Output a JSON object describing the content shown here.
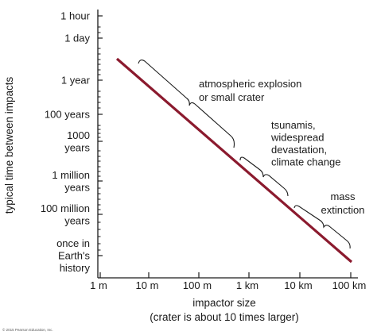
{
  "chart_data": {
    "type": "line",
    "xlabel": "impactor size",
    "xlabel_sub": "(crater is about 10 times larger)",
    "ylabel": "typical time between impacts",
    "x_scale": "log",
    "x_ticks": [
      "1 m",
      "10 m",
      "100 m",
      "1 km",
      "10 km",
      "100 km"
    ],
    "y_ticks": [
      [
        "1 hour"
      ],
      [
        "1 day"
      ],
      [
        "1 year"
      ],
      [
        "100 years"
      ],
      [
        "1000",
        "years"
      ],
      [
        "1 million",
        "years"
      ],
      [
        "100 million",
        "years"
      ],
      [
        "once in",
        "Earth's",
        "history"
      ]
    ],
    "series": [
      {
        "color": "#8b1a2e",
        "x": [
          "4 m",
          "100 km"
        ],
        "y": [
          "~1 month",
          "once in Earth's history"
        ]
      }
    ],
    "annotations": [
      [
        "atmospheric explosion",
        "or small crater"
      ],
      [
        "tsunamis,",
        "widespread",
        "devastation,",
        "climate change"
      ],
      [
        "mass",
        "extinction"
      ]
    ],
    "credit": "© 2015 Pearson Education, Inc.",
    "colors": {
      "line": "#8b1a2e",
      "axis": "#1a1a1a"
    }
  }
}
